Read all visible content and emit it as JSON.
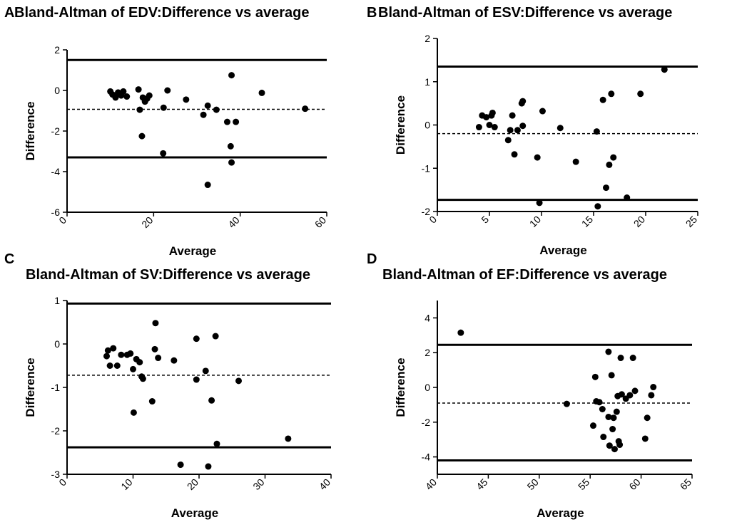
{
  "chart_data": [
    {
      "panel": "A",
      "type": "scatter",
      "title": "Bland-Altman of EDV:Difference vs average",
      "xlabel": "Average",
      "ylabel": "Difference",
      "xlim": [
        0,
        60
      ],
      "ylim": [
        -6,
        2
      ],
      "xticks": [
        0,
        20,
        40,
        60
      ],
      "yticks": [
        -6,
        -4,
        -2,
        0,
        2
      ],
      "mean_difference": -0.93,
      "upper_limit": 1.5,
      "lower_limit": -3.3,
      "points": [
        [
          10,
          -0.05
        ],
        [
          10.5,
          -0.2
        ],
        [
          11.2,
          -0.35
        ],
        [
          11.8,
          -0.1
        ],
        [
          12.5,
          -0.25
        ],
        [
          13,
          -0.05
        ],
        [
          13.8,
          -0.3
        ],
        [
          16.5,
          0.05
        ],
        [
          16.8,
          -0.95
        ],
        [
          17.5,
          -0.35
        ],
        [
          18,
          -0.55
        ],
        [
          18.5,
          -0.4
        ],
        [
          19,
          -0.25
        ],
        [
          17.3,
          -2.25
        ],
        [
          22.3,
          -0.85
        ],
        [
          22.2,
          -3.1
        ],
        [
          23.2,
          0.0
        ],
        [
          27.5,
          -0.45
        ],
        [
          31.5,
          -1.2
        ],
        [
          32.5,
          -0.75
        ],
        [
          32.5,
          -4.65
        ],
        [
          34.5,
          -0.95
        ],
        [
          37,
          -1.55
        ],
        [
          37.8,
          -2.75
        ],
        [
          38,
          0.75
        ],
        [
          38,
          -3.55
        ],
        [
          39,
          -1.55
        ],
        [
          45,
          -0.12
        ],
        [
          55,
          -0.9
        ]
      ]
    },
    {
      "panel": "B",
      "type": "scatter",
      "title": "Bland-Altman of ESV:Difference vs average",
      "xlabel": "Average",
      "ylabel": "Difference",
      "xlim": [
        0,
        25
      ],
      "ylim": [
        -2,
        2
      ],
      "xticks": [
        0,
        5,
        10,
        15,
        20,
        25
      ],
      "yticks": [
        -2,
        -1,
        0,
        1,
        2
      ],
      "mean_difference": -0.2,
      "upper_limit": 1.35,
      "lower_limit": -1.73,
      "points": [
        [
          4,
          -0.05
        ],
        [
          4.3,
          0.22
        ],
        [
          4.7,
          0.18
        ],
        [
          5,
          0.0
        ],
        [
          5.2,
          0.22
        ],
        [
          5.3,
          0.28
        ],
        [
          5.5,
          -0.05
        ],
        [
          6.8,
          -0.35
        ],
        [
          7,
          -0.12
        ],
        [
          7.2,
          0.22
        ],
        [
          7.4,
          -0.68
        ],
        [
          7.7,
          -0.12
        ],
        [
          8.1,
          0.5
        ],
        [
          8.2,
          0.55
        ],
        [
          8.2,
          -0.02
        ],
        [
          9.6,
          -0.75
        ],
        [
          9.8,
          -1.8
        ],
        [
          10.1,
          0.32
        ],
        [
          11.8,
          -0.07
        ],
        [
          13.3,
          -0.85
        ],
        [
          15.3,
          -0.15
        ],
        [
          15.4,
          -1.88
        ],
        [
          15.9,
          0.58
        ],
        [
          16.2,
          -1.45
        ],
        [
          16.5,
          -0.92
        ],
        [
          16.7,
          0.72
        ],
        [
          16.9,
          -0.75
        ],
        [
          18.2,
          -1.68
        ],
        [
          19.5,
          0.72
        ],
        [
          21.8,
          1.28
        ]
      ]
    },
    {
      "panel": "C",
      "type": "scatter",
      "title": "Bland-Altman of SV:Difference vs average",
      "xlabel": "Average",
      "ylabel": "Difference",
      "xlim": [
        0,
        40
      ],
      "ylim": [
        -3,
        1
      ],
      "xticks": [
        0,
        10,
        20,
        30,
        40
      ],
      "yticks": [
        -3,
        -2,
        -1,
        0,
        1
      ],
      "mean_difference": -0.72,
      "upper_limit": 0.93,
      "lower_limit": -2.38,
      "points": [
        [
          6,
          -0.28
        ],
        [
          6.2,
          -0.15
        ],
        [
          6.5,
          -0.5
        ],
        [
          7,
          -0.1
        ],
        [
          7.6,
          -0.5
        ],
        [
          8.2,
          -0.25
        ],
        [
          9.1,
          -0.25
        ],
        [
          9.6,
          -0.22
        ],
        [
          10,
          -0.58
        ],
        [
          10.1,
          -1.58
        ],
        [
          10.5,
          -0.35
        ],
        [
          11,
          -0.42
        ],
        [
          11.3,
          -0.75
        ],
        [
          11.5,
          -0.8
        ],
        [
          12.9,
          -1.32
        ],
        [
          13.3,
          -0.12
        ],
        [
          13.4,
          0.48
        ],
        [
          13.8,
          -0.32
        ],
        [
          16.2,
          -0.38
        ],
        [
          17.2,
          -2.78
        ],
        [
          19.6,
          -0.82
        ],
        [
          19.6,
          0.12
        ],
        [
          21,
          -0.62
        ],
        [
          21.4,
          -2.82
        ],
        [
          21.9,
          -1.3
        ],
        [
          22.5,
          0.18
        ],
        [
          22.7,
          -2.3
        ],
        [
          26,
          -0.85
        ],
        [
          33.5,
          -2.18
        ]
      ]
    },
    {
      "panel": "D",
      "type": "scatter",
      "title": "Bland-Altman of EF:Difference vs average",
      "xlabel": "Average",
      "ylabel": "Difference",
      "xlim": [
        40,
        65
      ],
      "ylim": [
        -5,
        5
      ],
      "xticks": [
        40,
        45,
        50,
        55,
        60,
        65
      ],
      "yticks": [
        -4,
        -2,
        0,
        2,
        4
      ],
      "mean_difference": -0.9,
      "upper_limit": 2.45,
      "lower_limit": -4.2,
      "points": [
        [
          42.3,
          3.15
        ],
        [
          52.7,
          -0.95
        ],
        [
          55.3,
          -2.2
        ],
        [
          55.5,
          0.6
        ],
        [
          55.6,
          -0.8
        ],
        [
          55.9,
          -0.85
        ],
        [
          56.2,
          -1.25
        ],
        [
          56.3,
          -2.85
        ],
        [
          56.8,
          2.05
        ],
        [
          56.8,
          -1.7
        ],
        [
          56.9,
          -3.35
        ],
        [
          57.1,
          0.7
        ],
        [
          57.2,
          -2.4
        ],
        [
          57.3,
          -1.75
        ],
        [
          57.4,
          -3.55
        ],
        [
          57.6,
          -1.4
        ],
        [
          57.7,
          -0.5
        ],
        [
          57.8,
          -3.1
        ],
        [
          57.9,
          -3.3
        ],
        [
          58,
          1.7
        ],
        [
          58.1,
          -0.4
        ],
        [
          58.5,
          -0.65
        ],
        [
          58.9,
          -0.45
        ],
        [
          59.2,
          1.7
        ],
        [
          59.4,
          -0.2
        ],
        [
          60.4,
          -2.95
        ],
        [
          60.6,
          -1.75
        ],
        [
          61,
          -0.45
        ],
        [
          61.2,
          0.02
        ]
      ]
    }
  ]
}
